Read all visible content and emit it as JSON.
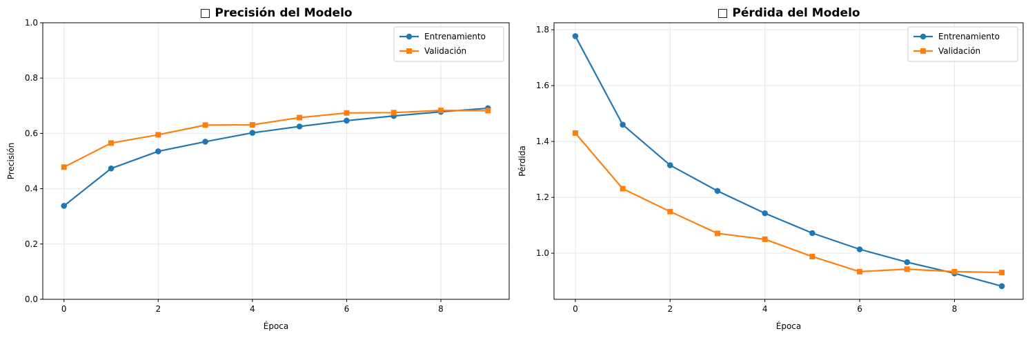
{
  "figure": {
    "background": "#ffffff"
  },
  "chart_data": [
    {
      "type": "line",
      "title": "□ Precisión del Modelo",
      "xlabel": "Época",
      "ylabel": "Precisión",
      "x": [
        0,
        1,
        2,
        3,
        4,
        5,
        6,
        7,
        8,
        9
      ],
      "xlim": [
        -0.45,
        9.45
      ],
      "ylim": [
        0.0,
        1.0
      ],
      "xticks": [
        0,
        2,
        4,
        6,
        8
      ],
      "yticks": [
        0.0,
        0.2,
        0.4,
        0.6,
        0.8,
        1.0
      ],
      "xtick_labels": [
        "0",
        "2",
        "4",
        "6",
        "8"
      ],
      "ytick_labels": [
        "0.0",
        "0.2",
        "0.4",
        "0.6",
        "0.8",
        "1.0"
      ],
      "grid": true,
      "legend": "top-right",
      "series": [
        {
          "name": "Entrenamiento",
          "color": "#1f77b4",
          "marker": "circle",
          "values": [
            0.338,
            0.473,
            0.535,
            0.57,
            0.602,
            0.625,
            0.646,
            0.663,
            0.678,
            0.691
          ]
        },
        {
          "name": "Validación",
          "color": "#ff7f0e",
          "marker": "square",
          "values": [
            0.478,
            0.565,
            0.595,
            0.63,
            0.631,
            0.657,
            0.674,
            0.675,
            0.683,
            0.682
          ]
        }
      ]
    },
    {
      "type": "line",
      "title": "□ Pérdida del Modelo",
      "xlabel": "Época",
      "ylabel": "Pérdida",
      "x": [
        0,
        1,
        2,
        3,
        4,
        5,
        6,
        7,
        8,
        9
      ],
      "xlim": [
        -0.45,
        9.45
      ],
      "ylim": [
        0.835,
        1.825
      ],
      "xticks": [
        0,
        2,
        4,
        6,
        8
      ],
      "yticks": [
        1.0,
        1.2,
        1.4,
        1.6,
        1.8
      ],
      "xtick_labels": [
        "0",
        "2",
        "4",
        "6",
        "8"
      ],
      "ytick_labels": [
        "1.0",
        "1.2",
        "1.4",
        "1.6",
        "1.8"
      ],
      "grid": true,
      "legend": "top-right",
      "series": [
        {
          "name": "Entrenamiento",
          "color": "#1f77b4",
          "marker": "circle",
          "values": [
            1.777,
            1.46,
            1.315,
            1.223,
            1.143,
            1.072,
            1.014,
            0.968,
            0.928,
            0.882
          ]
        },
        {
          "name": "Validación",
          "color": "#ff7f0e",
          "marker": "square",
          "values": [
            1.43,
            1.231,
            1.149,
            1.071,
            1.05,
            0.988,
            0.934,
            0.943,
            0.934,
            0.931
          ]
        }
      ]
    }
  ]
}
